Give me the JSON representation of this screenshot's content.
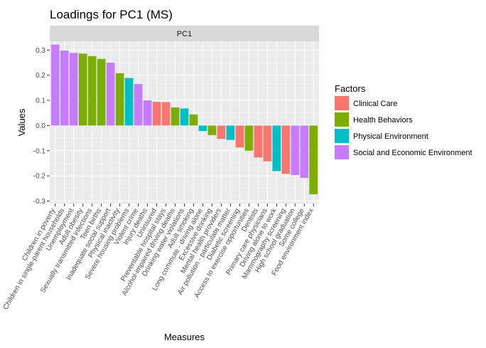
{
  "chart_data": {
    "type": "bar",
    "title": "Loadings for PC1 (MS)",
    "facet_label": "PC1",
    "xlabel": "Measures",
    "ylabel": "Values",
    "ylim": [
      -0.31,
      0.335
    ],
    "yticks": [
      -0.3,
      -0.2,
      -0.1,
      0.0,
      0.1,
      0.2,
      0.3
    ],
    "ytick_labels": [
      "-0.3",
      "-0.2",
      "-0.1",
      "0.0",
      "0.1",
      "0.2",
      "0.3"
    ],
    "grid": true,
    "legend": {
      "title": "Factors",
      "position": "right",
      "entries": [
        {
          "name": "Clinical Care",
          "color": "#F8766D"
        },
        {
          "name": "Health Behaviors",
          "color": "#7CAE00"
        },
        {
          "name": "Physical Environment",
          "color": "#00BFC4"
        },
        {
          "name": "Social and Economic Environment",
          "color": "#C77CFF"
        }
      ]
    },
    "categories": [
      "Children in poverty",
      "Children in single-parent households",
      "Unemployment",
      "Adult obesity",
      "Sexually transmitted infections",
      "Teen births",
      "Inadequate social support",
      "Physical inactivity",
      "Severe housing problems",
      "Violent crime",
      "Injury deaths",
      "Uninsured",
      "Preventable hospital stays",
      "Alcohol-impaired driving deaths",
      "Drinking water violations",
      "Adult smoking",
      "Long commute - driving alone",
      "Excessive drinking",
      "Mental health providers",
      "Air pollution - particulate matter",
      "Diabetic screening",
      "Access to exercise opportunities",
      "Dentists",
      "Primary care physicians",
      "Driving alone to work",
      "Mammography screening",
      "High school graduation",
      "Some college",
      "Food environment index"
    ],
    "values": [
      0.322,
      0.298,
      0.289,
      0.286,
      0.276,
      0.265,
      0.25,
      0.208,
      0.189,
      0.165,
      0.1,
      0.094,
      0.093,
      0.072,
      0.068,
      0.044,
      -0.022,
      -0.038,
      -0.053,
      -0.057,
      -0.087,
      -0.1,
      -0.127,
      -0.142,
      -0.181,
      -0.192,
      -0.197,
      -0.208,
      -0.273
    ],
    "factors": [
      "Social and Economic Environment",
      "Social and Economic Environment",
      "Social and Economic Environment",
      "Health Behaviors",
      "Health Behaviors",
      "Health Behaviors",
      "Social and Economic Environment",
      "Health Behaviors",
      "Physical Environment",
      "Social and Economic Environment",
      "Social and Economic Environment",
      "Clinical Care",
      "Clinical Care",
      "Health Behaviors",
      "Physical Environment",
      "Health Behaviors",
      "Physical Environment",
      "Health Behaviors",
      "Clinical Care",
      "Physical Environment",
      "Clinical Care",
      "Health Behaviors",
      "Clinical Care",
      "Clinical Care",
      "Physical Environment",
      "Clinical Care",
      "Social and Economic Environment",
      "Social and Economic Environment",
      "Health Behaviors"
    ]
  }
}
